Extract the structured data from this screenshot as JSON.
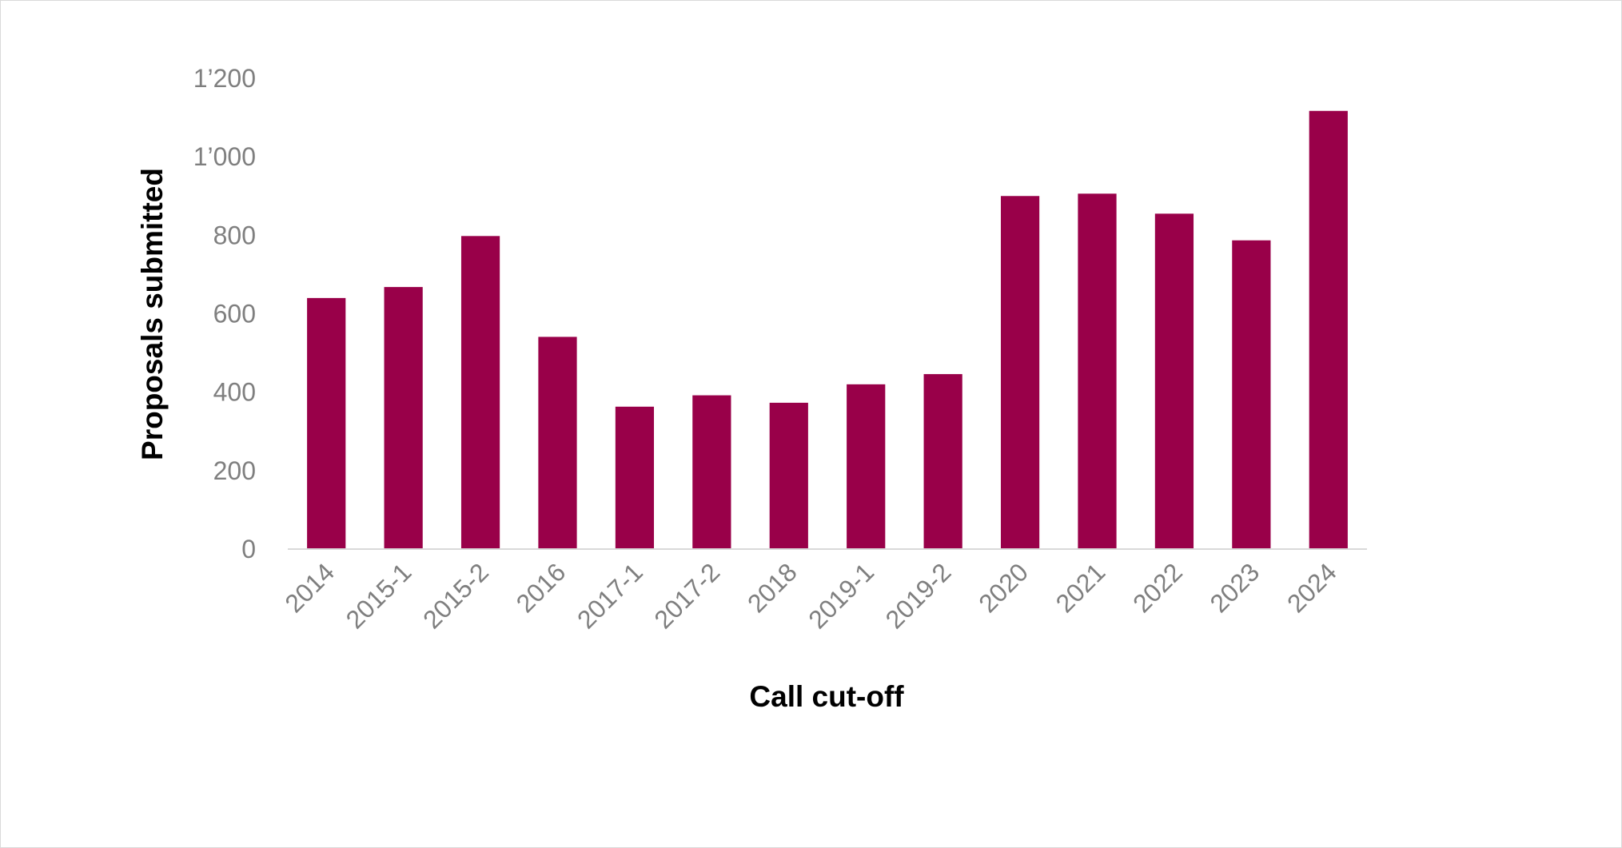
{
  "chart_data": {
    "type": "bar",
    "title": "",
    "xlabel": "Call cut-off",
    "ylabel": "Proposals submitted",
    "categories": [
      "2014",
      "2015-1",
      "2015-2",
      "2016",
      "2017-1",
      "2017-2",
      "2018",
      "2019-1",
      "2019-2",
      "2020",
      "2021",
      "2022",
      "2023",
      "2024"
    ],
    "series": [
      {
        "values": [
          640,
          668,
          798,
          541,
          363,
          392,
          373,
          420,
          446,
          900,
          906,
          855,
          787,
          1117
        ],
        "color": "#990049"
      }
    ],
    "ylim": [
      0,
      1200
    ],
    "yticks": [
      0,
      200,
      400,
      600,
      800,
      1000,
      1200
    ],
    "ytick_labels": [
      "0",
      "200",
      "400",
      "600",
      "800",
      "1’000",
      "1’200"
    ],
    "grid": false,
    "legend": "none",
    "axis_color": "#d9d9d9",
    "tick_color": "#7f7f7f"
  }
}
